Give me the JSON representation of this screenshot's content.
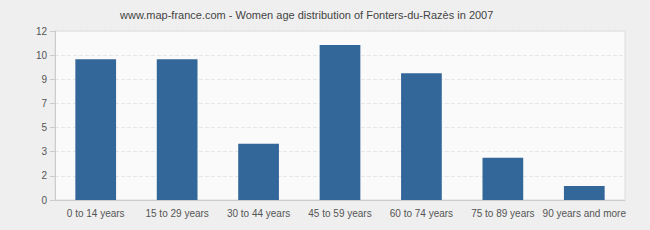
{
  "chart_data": {
    "type": "bar",
    "title": "www.map-france.com - Women age distribution of Fonters-du-Razès in 2007",
    "categories": [
      "0 to 14 years",
      "15 to 29 years",
      "30 to 44 years",
      "45 to 59 years",
      "60 to 74 years",
      "75 to 89 years",
      "90 years and more"
    ],
    "values": [
      10,
      10,
      4,
      11,
      9,
      3,
      1
    ],
    "color": "#336699",
    "ylim": [
      0,
      12
    ],
    "yticks": [
      0,
      {
        "value": 1.71,
        "label": "2"
      },
      {
        "value": 3.43,
        "label": "3"
      },
      {
        "value": 5.14,
        "label": "5"
      },
      {
        "value": 6.86,
        "label": "7"
      },
      {
        "value": 8.57,
        "label": "9"
      },
      {
        "value": 10.29,
        "label": "10"
      },
      12
    ],
    "grid": true
  }
}
